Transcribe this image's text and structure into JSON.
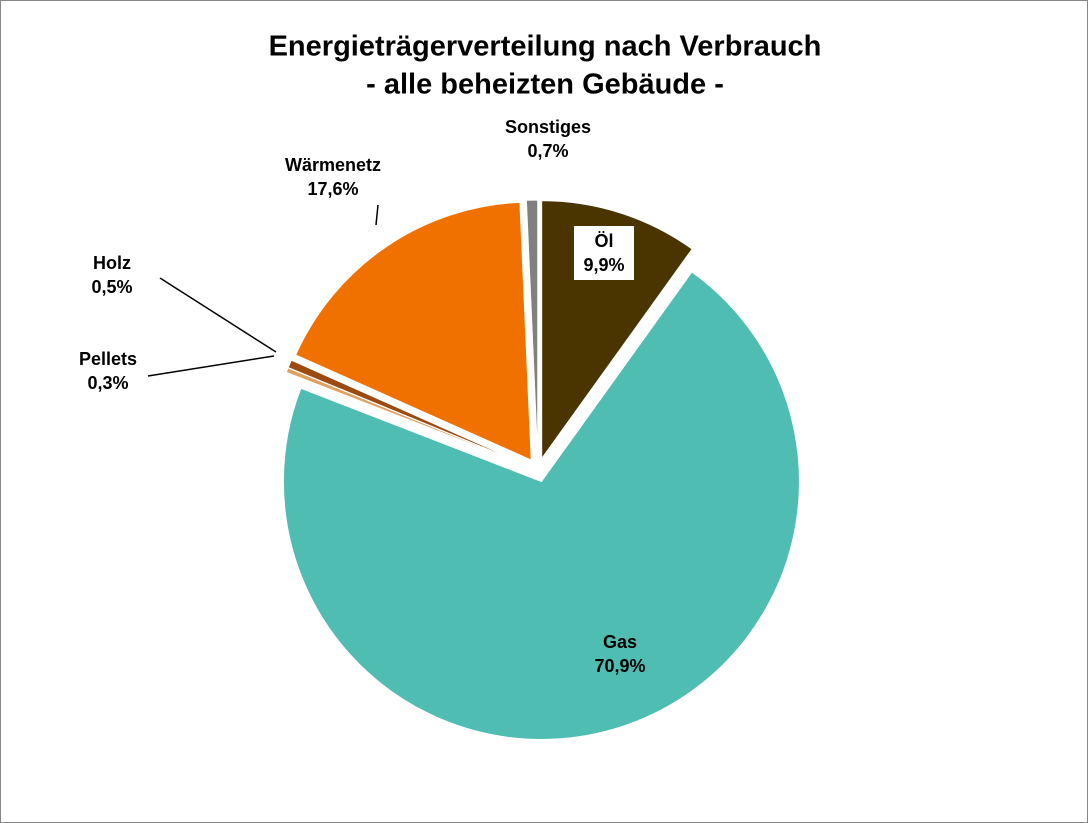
{
  "chart_data": {
    "type": "pie",
    "title": [
      "Energieträgerverteilung nach Verbrauch",
      "- alle beheizten Gebäude -"
    ],
    "categories": [
      "Öl",
      "Gas",
      "Pellets",
      "Holz",
      "Wärmenetz",
      "Sonstiges"
    ],
    "values": [
      9.9,
      70.9,
      0.3,
      0.5,
      17.6,
      0.7
    ],
    "value_labels": [
      "9,9%",
      "70,9%",
      "0,3%",
      "0,5%",
      "17,6%",
      "0,7%"
    ],
    "colors": [
      "#4a3500",
      "#50bdb2",
      "#e0a060",
      "#9b4a10",
      "#f07000",
      "#808080"
    ]
  }
}
